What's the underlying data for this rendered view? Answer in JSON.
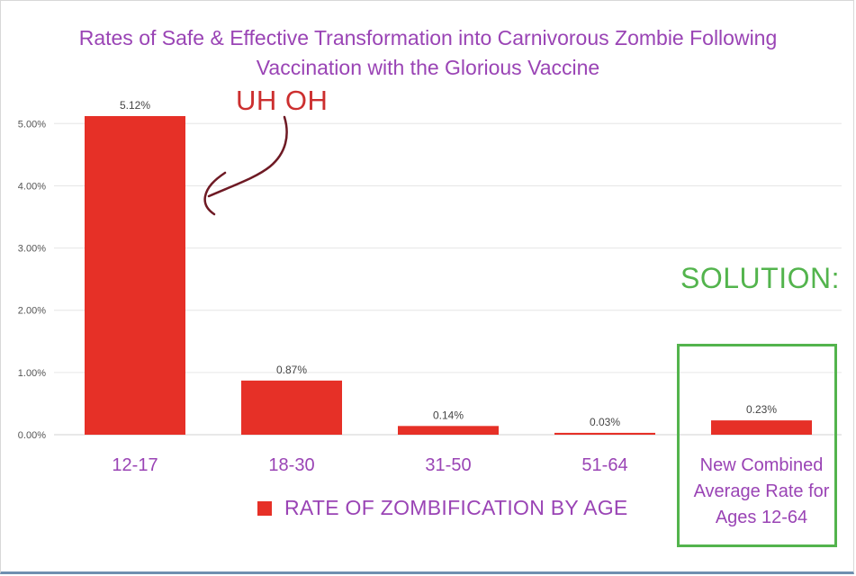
{
  "title_lines": [
    "Rates of Safe & Effective Transformation into Carnivorous Zombie Following",
    "Vaccination with the Glorious Vaccine"
  ],
  "annotations": {
    "uh_oh": "UH OH",
    "solution": "SOLUTION:"
  },
  "colors": {
    "bar": "#e63027",
    "title": "#9a44b5",
    "uh_oh": "#cc2f2f",
    "solution": "#53b44d",
    "arrow": "#6e1a24"
  },
  "chart_data": {
    "type": "bar",
    "title": "Rates of Safe & Effective Transformation into Carnivorous Zombie Following Vaccination with the Glorious Vaccine",
    "categories": [
      "12-17",
      "18-30",
      "31-50",
      "51-64",
      "New Combined Average Rate for Ages 12-64"
    ],
    "category_label_lines": [
      [
        "12-17"
      ],
      [
        "18-30"
      ],
      [
        "31-50"
      ],
      [
        "51-64"
      ],
      [
        "New Combined",
        "Average Rate for",
        "Ages 12-64"
      ]
    ],
    "series": [
      {
        "name": "RATE OF ZOMBIFICATION BY AGE",
        "values": [
          5.12,
          0.87,
          0.14,
          0.03,
          0.23
        ],
        "data_labels": [
          "5.12%",
          "0.87%",
          "0.14%",
          "0.03%",
          "0.23%"
        ]
      }
    ],
    "yticks": [
      0,
      1,
      2,
      3,
      4,
      5
    ],
    "ytick_labels": [
      "0.00%",
      "1.00%",
      "2.00%",
      "3.00%",
      "4.00%",
      "5.00%"
    ],
    "ylim": [
      0,
      5.12
    ],
    "grid": true,
    "legend": "bottom"
  }
}
